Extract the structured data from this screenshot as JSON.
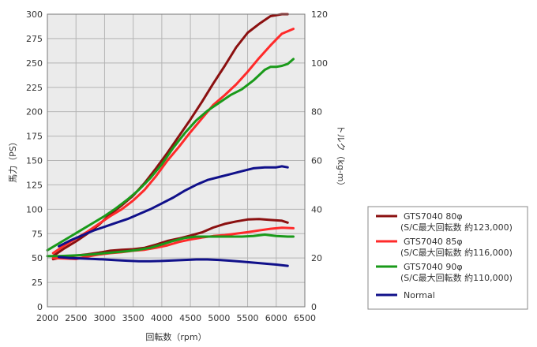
{
  "chart_data": {
    "type": "line",
    "title": "",
    "xlabel": "回転数（rpm）",
    "ylabel_left": "馬力（PS）",
    "ylabel_right": "トルク（kg-m）",
    "xlim": [
      2000,
      6500
    ],
    "ylim_left": [
      0,
      300
    ],
    "ylim_right": [
      0,
      120
    ],
    "x_ticks": [
      "2000",
      "2500",
      "3000",
      "3500",
      "4000",
      "4500",
      "5000",
      "5500",
      "6000",
      "6500"
    ],
    "y_left_ticks": [
      "0",
      "25",
      "50",
      "75",
      "100",
      "125",
      "150",
      "175",
      "200",
      "225",
      "250",
      "275",
      "300"
    ],
    "y_right_ticks": [
      "0",
      "20",
      "40",
      "60",
      "80",
      "100",
      "120"
    ],
    "grid": true,
    "legend_position": "right",
    "legend": [
      {
        "color": "#8b1010",
        "lines": [
          "GTS7040 80φ",
          "(S/C最大回転数 約123,000)"
        ]
      },
      {
        "color": "#ff2a2a",
        "lines": [
          "GTS7040 85φ",
          "(S/C最大回転数 約116,000)"
        ]
      },
      {
        "color": "#1a9a1a",
        "lines": [
          "GTS7040 90φ",
          "(S/C最大回転数 約110,000)"
        ]
      },
      {
        "color": "#10108a",
        "lines": [
          "Normal"
        ]
      }
    ],
    "series": [
      {
        "name": "GTS7040 80φ",
        "kind": "power",
        "axis": "left",
        "color": "#8b1010",
        "x": [
          2100,
          2300,
          2500,
          2700,
          2900,
          3100,
          3300,
          3500,
          3700,
          3900,
          4100,
          4300,
          4500,
          4700,
          4900,
          5100,
          5300,
          5500,
          5700,
          5900,
          6100,
          6200
        ],
        "y": [
          52,
          60,
          67,
          75,
          84,
          95,
          104,
          114,
          127,
          142,
          158,
          175,
          192,
          210,
          229,
          247,
          266,
          281,
          290,
          298,
          300,
          300
        ]
      },
      {
        "name": "GTS7040 85φ",
        "kind": "power",
        "axis": "left",
        "color": "#ff2a2a",
        "x": [
          2100,
          2300,
          2500,
          2700,
          2900,
          3100,
          3300,
          3500,
          3700,
          3900,
          4100,
          4300,
          4500,
          4700,
          4900,
          5100,
          5300,
          5500,
          5700,
          5900,
          6100,
          6300
        ],
        "y": [
          55,
          63,
          70,
          77,
          85,
          93,
          100,
          109,
          120,
          134,
          150,
          164,
          179,
          193,
          207,
          217,
          228,
          241,
          255,
          268,
          280,
          285
        ]
      },
      {
        "name": "GTS7040 90φ",
        "kind": "power",
        "axis": "left",
        "color": "#1a9a1a",
        "x": [
          2000,
          2200,
          2400,
          2600,
          2800,
          3000,
          3200,
          3400,
          3600,
          3800,
          4000,
          4200,
          4400,
          4600,
          4800,
          5000,
          5200,
          5400,
          5600,
          5800,
          5900,
          6000,
          6100,
          6200,
          6300
        ],
        "y": [
          58,
          65,
          72,
          79,
          86,
          93,
          101,
          110,
          120,
          132,
          146,
          163,
          178,
          191,
          201,
          209,
          217,
          223,
          232,
          243,
          246,
          246,
          247,
          249,
          254
        ]
      },
      {
        "name": "Normal",
        "kind": "power",
        "axis": "left",
        "color": "#10108a",
        "x": [
          2200,
          2400,
          2600,
          2800,
          3000,
          3200,
          3400,
          3600,
          3800,
          4000,
          4200,
          4400,
          4600,
          4800,
          5000,
          5200,
          5400,
          5600,
          5800,
          6000,
          6100,
          6200
        ],
        "y": [
          62,
          68,
          73,
          78,
          82,
          86,
          90,
          95,
          100,
          106,
          112,
          119,
          125,
          130,
          133,
          136,
          139,
          142,
          143,
          143,
          144,
          143
        ]
      },
      {
        "name": "GTS7040 80φ",
        "kind": "torque",
        "axis": "right",
        "color": "#8b1010",
        "x": [
          2100,
          2300,
          2500,
          2700,
          2900,
          3100,
          3300,
          3500,
          3700,
          3900,
          4100,
          4300,
          4500,
          4700,
          4900,
          5100,
          5300,
          5500,
          5700,
          5900,
          6100,
          6200
        ],
        "y": [
          19.5,
          20.5,
          21,
          21.5,
          22.2,
          23,
          23.4,
          23.6,
          24.2,
          25.5,
          27,
          28,
          29.2,
          30.5,
          32.5,
          34,
          35,
          35.8,
          36,
          35.6,
          35.3,
          34.5
        ]
      },
      {
        "name": "GTS7040 85φ",
        "kind": "torque",
        "axis": "right",
        "color": "#ff2a2a",
        "x": [
          2100,
          2300,
          2500,
          2700,
          2900,
          3100,
          3300,
          3500,
          3700,
          3900,
          4100,
          4300,
          4500,
          4700,
          4900,
          5100,
          5300,
          5500,
          5700,
          5900,
          6100,
          6300
        ],
        "y": [
          20,
          19.8,
          19.6,
          20.6,
          21.4,
          22,
          22.4,
          23,
          23.4,
          24.2,
          25.2,
          26.6,
          27.6,
          28.4,
          29,
          29.4,
          30,
          30.6,
          31.3,
          32,
          32.4,
          32.2
        ]
      },
      {
        "name": "GTS7040 90φ",
        "kind": "torque",
        "axis": "right",
        "color": "#1a9a1a",
        "x": [
          2000,
          2200,
          2400,
          2600,
          2800,
          3000,
          3200,
          3400,
          3600,
          3800,
          4000,
          4200,
          4400,
          4600,
          4800,
          5000,
          5200,
          5400,
          5600,
          5800,
          6000,
          6200,
          6300
        ],
        "y": [
          20.8,
          20.8,
          21,
          21.2,
          21.5,
          22,
          22.4,
          22.8,
          23.4,
          24.2,
          25.6,
          27,
          28.2,
          28.8,
          28.8,
          28.8,
          28.8,
          28.8,
          29,
          29.6,
          29,
          28.8,
          28.8
        ]
      },
      {
        "name": "Normal",
        "kind": "torque",
        "axis": "right",
        "color": "#10108a",
        "x": [
          2200,
          2400,
          2600,
          2800,
          3000,
          3200,
          3400,
          3600,
          3800,
          4000,
          4200,
          4400,
          4600,
          4800,
          5000,
          5200,
          5400,
          5600,
          5800,
          6000,
          6200
        ],
        "y": [
          20.4,
          20,
          19.8,
          19.6,
          19.4,
          19.1,
          18.9,
          18.7,
          18.7,
          18.8,
          19,
          19.2,
          19.4,
          19.4,
          19.2,
          18.9,
          18.5,
          18.1,
          17.7,
          17.3,
          16.8
        ]
      }
    ]
  }
}
